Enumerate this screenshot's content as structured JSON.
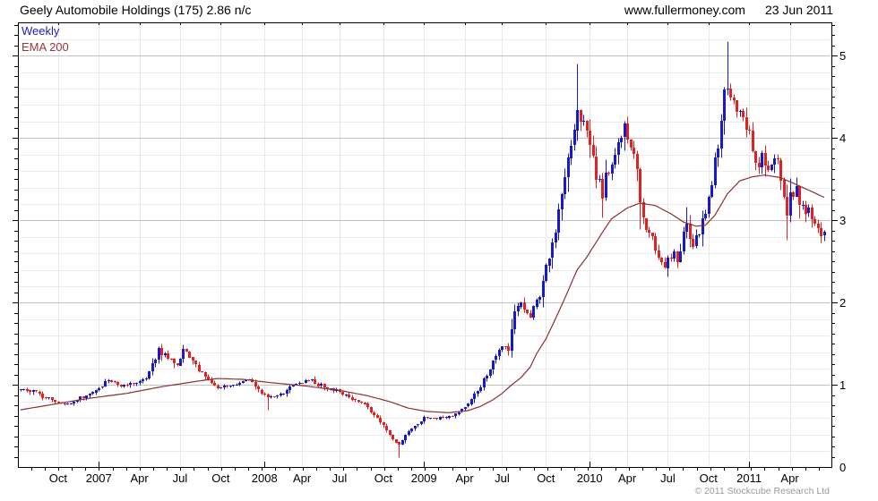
{
  "header": {
    "title": "Geely Automobile Holdings (175) 2.86 n/c",
    "website": "www.fullermoney.com",
    "date": "23 Jun 2011"
  },
  "legend": {
    "series_label": "Weekly",
    "overlay_label": "EMA 200"
  },
  "footer": {
    "copyright": "© 2011 Stockcube Research Ltd"
  },
  "colors": {
    "up_candle": "#1818cc",
    "down_candle": "#e02222",
    "ema_line": "#8b2f2f",
    "series_label_color": "#2020bb",
    "overlay_label_color": "#9e3434",
    "grid_minor": "#ebebeb",
    "grid_major": "#c3c3c3",
    "grid_vertical": "#e7e7e7",
    "axis": "#000000",
    "tick_label": "#000000",
    "copyright": "#9a9a9a"
  },
  "chart_data": {
    "type": "candlestick",
    "title": "Geely Automobile Holdings (175) 2.86 n/c",
    "instrument": "Geely Automobile Holdings",
    "ticker": "175",
    "last_price": "2.86",
    "change": "n/c",
    "interval": "Weekly",
    "overlay": "EMA 200",
    "y_axis": {
      "ticks": [
        0,
        1,
        2,
        3,
        4,
        5
      ],
      "range": [
        0,
        5.4
      ]
    },
    "x_axis": {
      "labels": [
        {
          "label": "Oct",
          "week": 12
        },
        {
          "label": "2007",
          "week": 25,
          "year": true
        },
        {
          "label": "Apr",
          "week": 38
        },
        {
          "label": "Jul",
          "week": 51
        },
        {
          "label": "Oct",
          "week": 64
        },
        {
          "label": "2008",
          "week": 78,
          "year": true
        },
        {
          "label": "Apr",
          "week": 90
        },
        {
          "label": "Jul",
          "week": 102
        },
        {
          "label": "Oct",
          "week": 116
        },
        {
          "label": "2009",
          "week": 129,
          "year": true
        },
        {
          "label": "Apr",
          "week": 142
        },
        {
          "label": "Jul",
          "week": 154
        },
        {
          "label": "Oct",
          "week": 168
        },
        {
          "label": "2010",
          "week": 182,
          "year": true
        },
        {
          "label": "Apr",
          "week": 194
        },
        {
          "label": "Jul",
          "week": 207
        },
        {
          "label": "Oct",
          "week": 220
        },
        {
          "label": "2011",
          "week": 233,
          "year": true
        },
        {
          "label": "Apr",
          "week": 246
        }
      ]
    },
    "weeks_total": 258,
    "close_anchors": [
      [
        0,
        0.95
      ],
      [
        4,
        0.92
      ],
      [
        8,
        0.85
      ],
      [
        12,
        0.78
      ],
      [
        17,
        0.8
      ],
      [
        21,
        0.88
      ],
      [
        25,
        0.98
      ],
      [
        28,
        1.06
      ],
      [
        32,
        1.0
      ],
      [
        37,
        1.02
      ],
      [
        40,
        1.1
      ],
      [
        44,
        1.42
      ],
      [
        47,
        1.32
      ],
      [
        50,
        1.25
      ],
      [
        52,
        1.43
      ],
      [
        55,
        1.3
      ],
      [
        57,
        1.18
      ],
      [
        60,
        1.08
      ],
      [
        63,
        0.96
      ],
      [
        67,
        0.99
      ],
      [
        70,
        1.03
      ],
      [
        73,
        1.08
      ],
      [
        77,
        0.92
      ],
      [
        79,
        0.86
      ],
      [
        83,
        0.89
      ],
      [
        87,
        1.0
      ],
      [
        92,
        1.06
      ],
      [
        96,
        1.0
      ],
      [
        100,
        0.95
      ],
      [
        104,
        0.88
      ],
      [
        109,
        0.8
      ],
      [
        112,
        0.68
      ],
      [
        116,
        0.5
      ],
      [
        119,
        0.35
      ],
      [
        121,
        0.28
      ],
      [
        123,
        0.4
      ],
      [
        126,
        0.5
      ],
      [
        129,
        0.6
      ],
      [
        133,
        0.6
      ],
      [
        137,
        0.62
      ],
      [
        140,
        0.66
      ],
      [
        143,
        0.78
      ],
      [
        146,
        0.92
      ],
      [
        148,
        1.08
      ],
      [
        150,
        1.2
      ],
      [
        152,
        1.35
      ],
      [
        154,
        1.48
      ],
      [
        156,
        1.42
      ],
      [
        158,
        1.85
      ],
      [
        160,
        2.0
      ],
      [
        163,
        1.82
      ],
      [
        164,
        1.95
      ],
      [
        166,
        2.05
      ],
      [
        168,
        2.45
      ],
      [
        170,
        2.7
      ],
      [
        172,
        3.1
      ],
      [
        174,
        3.6
      ],
      [
        176,
        3.85
      ],
      [
        178,
        4.35
      ],
      [
        179,
        4.2
      ],
      [
        181,
        4.1
      ],
      [
        183,
        3.75
      ],
      [
        184,
        3.55
      ],
      [
        186,
        3.3
      ],
      [
        187,
        3.5
      ],
      [
        189,
        3.75
      ],
      [
        191,
        3.95
      ],
      [
        193,
        4.15
      ],
      [
        195,
        3.9
      ],
      [
        197,
        3.6
      ],
      [
        198,
        3.2
      ],
      [
        200,
        2.95
      ],
      [
        202,
        2.75
      ],
      [
        204,
        2.6
      ],
      [
        206,
        2.45
      ],
      [
        208,
        2.6
      ],
      [
        210,
        2.55
      ],
      [
        212,
        2.8
      ],
      [
        213,
        2.95
      ],
      [
        215,
        2.65
      ],
      [
        217,
        2.85
      ],
      [
        219,
        3.1
      ],
      [
        221,
        3.4
      ],
      [
        223,
        3.95
      ],
      [
        225,
        4.6
      ],
      [
        226,
        4.5
      ],
      [
        228,
        4.42
      ],
      [
        229,
        4.3
      ],
      [
        231,
        4.2
      ],
      [
        233,
        4.0
      ],
      [
        234,
        3.8
      ],
      [
        236,
        3.7
      ],
      [
        237,
        3.9
      ],
      [
        239,
        3.6
      ],
      [
        240,
        3.75
      ],
      [
        242,
        3.7
      ],
      [
        243,
        3.45
      ],
      [
        245,
        3.1
      ],
      [
        246,
        3.3
      ],
      [
        248,
        3.35
      ],
      [
        249,
        3.2
      ],
      [
        251,
        3.1
      ],
      [
        252,
        3.15
      ],
      [
        254,
        3.0
      ],
      [
        255,
        2.9
      ],
      [
        256,
        2.82
      ],
      [
        257,
        2.86
      ]
    ],
    "ema_anchors": [
      [
        0,
        0.7
      ],
      [
        11,
        0.77
      ],
      [
        22,
        0.84
      ],
      [
        34,
        0.9
      ],
      [
        45,
        0.98
      ],
      [
        57,
        1.05
      ],
      [
        63,
        1.08
      ],
      [
        71,
        1.07
      ],
      [
        80,
        1.03
      ],
      [
        91,
        0.99
      ],
      [
        103,
        0.93
      ],
      [
        111,
        0.87
      ],
      [
        118,
        0.8
      ],
      [
        124,
        0.72
      ],
      [
        130,
        0.68
      ],
      [
        137,
        0.665
      ],
      [
        143,
        0.69
      ],
      [
        147,
        0.74
      ],
      [
        151,
        0.82
      ],
      [
        154,
        0.9
      ],
      [
        157,
        1.0
      ],
      [
        160,
        1.09
      ],
      [
        163,
        1.22
      ],
      [
        165,
        1.38
      ],
      [
        168,
        1.56
      ],
      [
        171,
        1.8
      ],
      [
        174,
        2.05
      ],
      [
        178,
        2.4
      ],
      [
        181,
        2.55
      ],
      [
        186,
        2.85
      ],
      [
        189,
        3.02
      ],
      [
        194,
        3.15
      ],
      [
        198,
        3.21
      ],
      [
        203,
        3.18
      ],
      [
        208,
        3.08
      ],
      [
        212,
        2.98
      ],
      [
        216,
        2.93
      ],
      [
        219,
        2.94
      ],
      [
        222,
        3.06
      ],
      [
        226,
        3.32
      ],
      [
        230,
        3.48
      ],
      [
        234,
        3.53
      ],
      [
        238,
        3.55
      ],
      [
        243,
        3.52
      ],
      [
        249,
        3.42
      ],
      [
        253,
        3.35
      ],
      [
        257,
        3.28
      ]
    ],
    "extremes": [
      {
        "week": 44,
        "high": 1.47
      },
      {
        "week": 52,
        "high": 1.49
      },
      {
        "week": 79,
        "low": 0.7
      },
      {
        "week": 121,
        "low": 0.13
      },
      {
        "week": 178,
        "high": 4.9
      },
      {
        "week": 186,
        "low": 3.04
      },
      {
        "week": 198,
        "low": 2.9
      },
      {
        "week": 213,
        "high": 3.17
      },
      {
        "week": 226,
        "high": 5.18
      },
      {
        "week": 245,
        "low": 2.76
      }
    ]
  }
}
